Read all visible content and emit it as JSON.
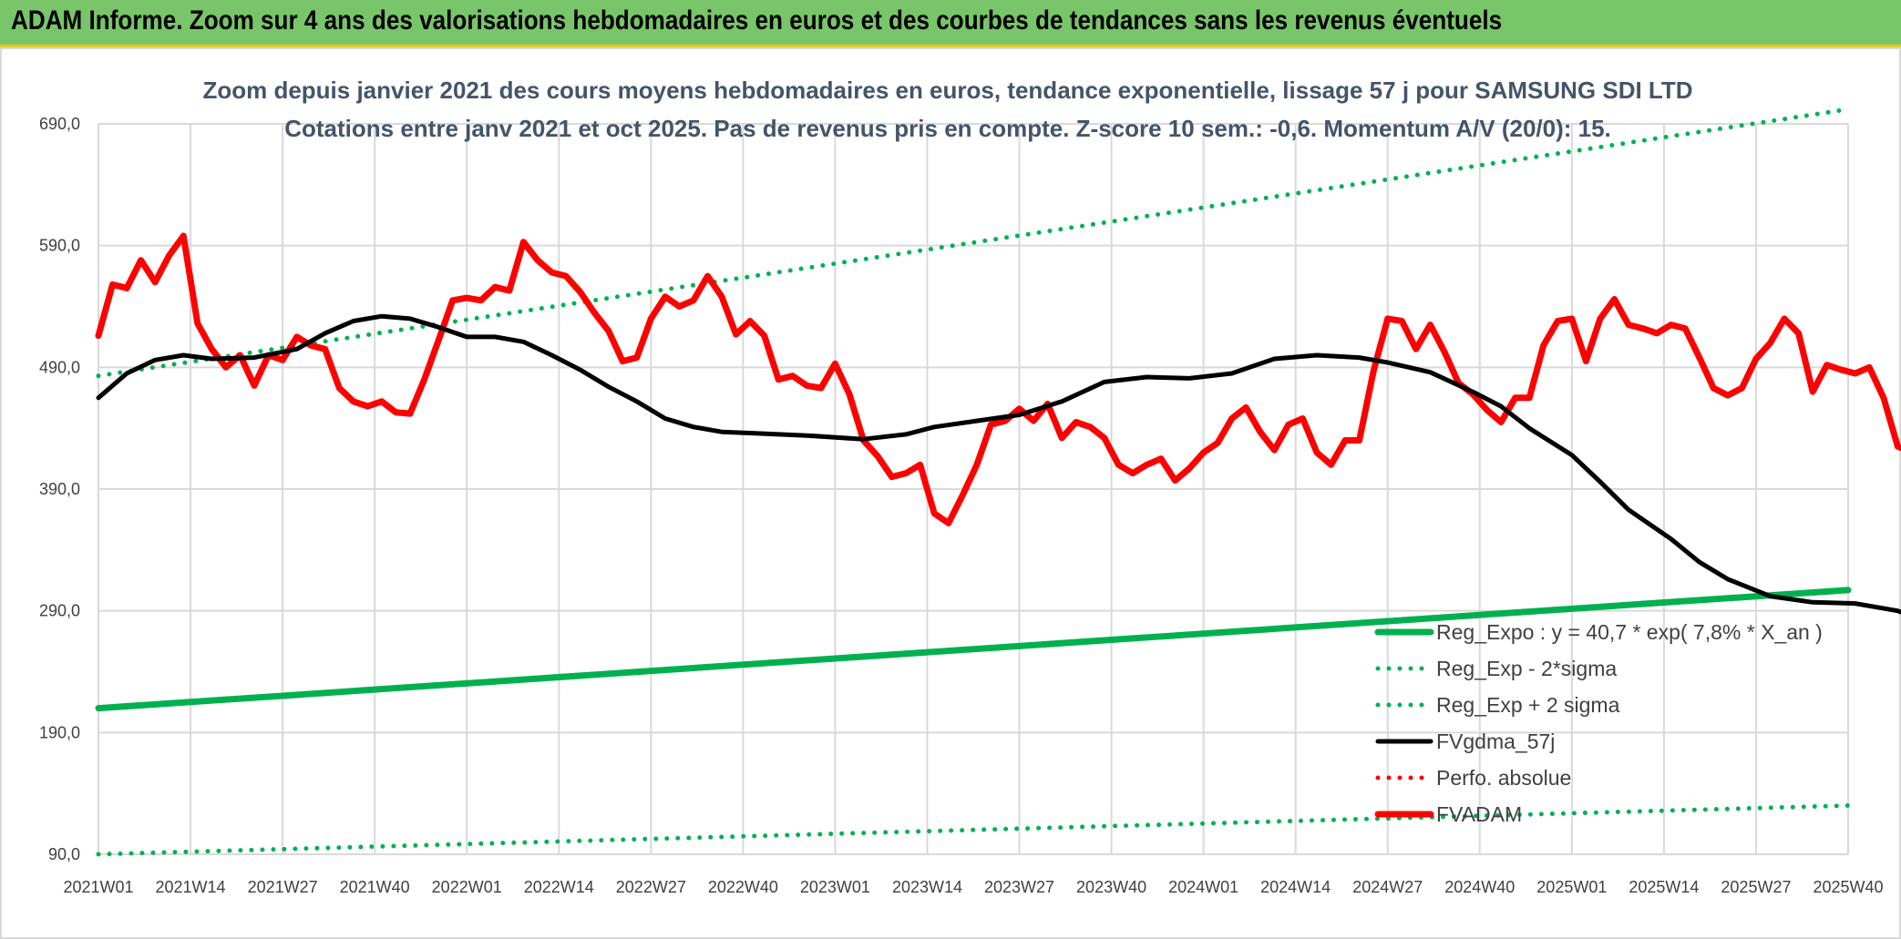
{
  "header": {
    "title": "ADAM Informe. Zoom sur 4 ans des valorisations hebdomadaires en euros et des courbes de tendances sans les revenus éventuels"
  },
  "colors": {
    "banner": "#79c56a",
    "trend": "#00b050",
    "smooth": "#000000",
    "price": "#ff0000",
    "grid": "#d9d9d9"
  },
  "chart_data": {
    "type": "line",
    "title": "Zoom depuis janvier 2021 des cours moyens hebdomadaires en euros, tendance exponentielle, lissage 57 j pour SAMSUNG SDI LTD",
    "subtitle": "Cotations entre janv 2021 et oct 2025. Pas de revenus pris en compte. Z-score 10 sem.: -0,6. Momentum A/V (20/0): 15.",
    "xlabel": "",
    "ylabel": "",
    "ylim": [
      90,
      690
    ],
    "grid": true,
    "legend_position": "right",
    "y_ticks": [
      "90,0",
      "190,0",
      "290,0",
      "390,0",
      "490,0",
      "590,0",
      "690,0"
    ],
    "x_ticks": [
      "2021W01",
      "2021W14",
      "2021W27",
      "2021W40",
      "2022W01",
      "2022W14",
      "2022W27",
      "2022W40",
      "2023W01",
      "2023W14",
      "2023W27",
      "2023W40",
      "2024W01",
      "2024W14",
      "2024W27",
      "2024W40",
      "2025W01",
      "2025W14",
      "2025W27",
      "2025W40"
    ],
    "legend": [
      "Reg_Expo : y = 40,7 * exp( 7,8% *  X_an )",
      "Reg_Exp - 2*sigma",
      "Reg_Exp + 2 sigma",
      "FVgdma_57j",
      "Perfo. absolue",
      "FVADAM"
    ],
    "series": [
      {
        "name": "Reg_Expo : y = 40,7 * exp( 7,8% *  X_an )",
        "style": "solid-thick",
        "color": "#00b050",
        "points": [
          [
            0,
            210
          ],
          [
            247,
            307
          ]
        ]
      },
      {
        "name": "Reg_Exp - 2*sigma",
        "style": "dotted",
        "color": "#00b050",
        "points": [
          [
            0,
            90
          ],
          [
            247,
            130
          ]
        ]
      },
      {
        "name": "Reg_Exp + 2 sigma",
        "style": "dotted",
        "color": "#00b050",
        "points": [
          [
            0,
            483
          ],
          [
            247,
            702
          ]
        ]
      },
      {
        "name": "FVgdma_57j",
        "style": "solid",
        "color": "#000000",
        "points": [
          [
            0,
            465
          ],
          [
            4,
            485
          ],
          [
            8,
            496
          ],
          [
            12,
            500
          ],
          [
            16,
            497
          ],
          [
            22,
            498
          ],
          [
            28,
            505
          ],
          [
            32,
            518
          ],
          [
            36,
            528
          ],
          [
            40,
            532
          ],
          [
            44,
            530
          ],
          [
            48,
            523
          ],
          [
            52,
            515
          ],
          [
            56,
            515
          ],
          [
            60,
            511
          ],
          [
            64,
            500
          ],
          [
            68,
            488
          ],
          [
            72,
            474
          ],
          [
            76,
            462
          ],
          [
            80,
            448
          ],
          [
            84,
            441
          ],
          [
            88,
            437
          ],
          [
            92,
            436
          ],
          [
            100,
            434
          ],
          [
            108,
            431
          ],
          [
            114,
            435
          ],
          [
            118,
            441
          ],
          [
            124,
            446
          ],
          [
            130,
            451
          ],
          [
            136,
            462
          ],
          [
            142,
            478
          ],
          [
            148,
            482
          ],
          [
            154,
            481
          ],
          [
            160,
            485
          ],
          [
            166,
            497
          ],
          [
            172,
            500
          ],
          [
            178,
            498
          ],
          [
            182,
            494
          ],
          [
            188,
            486
          ],
          [
            194,
            470
          ],
          [
            198,
            458
          ],
          [
            202,
            440
          ],
          [
            208,
            418
          ],
          [
            212,
            396
          ],
          [
            216,
            373
          ],
          [
            222,
            349
          ],
          [
            226,
            330
          ],
          [
            230,
            316
          ],
          [
            236,
            302
          ],
          [
            242,
            297
          ],
          [
            248,
            296
          ],
          [
            254,
            290
          ],
          [
            258,
            281
          ],
          [
            262,
            272
          ],
          [
            266,
            262
          ],
          [
            270,
            252
          ],
          [
            276,
            240
          ],
          [
            282,
            230
          ],
          [
            286,
            218
          ],
          [
            290,
            203
          ],
          [
            294,
            192
          ],
          [
            300,
            175
          ],
          [
            306,
            160
          ],
          [
            310,
            147
          ],
          [
            316,
            137
          ],
          [
            320,
            132
          ],
          [
            326,
            128
          ],
          [
            332,
            130
          ],
          [
            336,
            132
          ],
          [
            340,
            133
          ],
          [
            346,
            132
          ],
          [
            350,
            131
          ]
        ]
      },
      {
        "name": "Perfo. absolue",
        "style": "dotted",
        "color": "#ff0000",
        "points": []
      },
      {
        "name": "FVADAM",
        "style": "solid-thick",
        "color": "#ff0000",
        "points": [
          [
            0,
            516
          ],
          [
            2,
            558
          ],
          [
            4,
            555
          ],
          [
            6,
            578
          ],
          [
            8,
            560
          ],
          [
            10,
            582
          ],
          [
            12,
            598
          ],
          [
            14,
            526
          ],
          [
            16,
            505
          ],
          [
            18,
            490
          ],
          [
            20,
            500
          ],
          [
            22,
            475
          ],
          [
            24,
            500
          ],
          [
            26,
            496
          ],
          [
            28,
            515
          ],
          [
            30,
            508
          ],
          [
            32,
            505
          ],
          [
            34,
            473
          ],
          [
            36,
            462
          ],
          [
            38,
            458
          ],
          [
            40,
            462
          ],
          [
            42,
            453
          ],
          [
            44,
            452
          ],
          [
            46,
            480
          ],
          [
            48,
            512
          ],
          [
            50,
            545
          ],
          [
            52,
            547
          ],
          [
            54,
            545
          ],
          [
            56,
            556
          ],
          [
            58,
            553
          ],
          [
            60,
            593
          ],
          [
            62,
            578
          ],
          [
            64,
            568
          ],
          [
            66,
            565
          ],
          [
            68,
            552
          ],
          [
            70,
            535
          ],
          [
            72,
            520
          ],
          [
            74,
            495
          ],
          [
            76,
            498
          ],
          [
            78,
            530
          ],
          [
            80,
            548
          ],
          [
            82,
            540
          ],
          [
            84,
            545
          ],
          [
            86,
            565
          ],
          [
            88,
            548
          ],
          [
            90,
            517
          ],
          [
            92,
            528
          ],
          [
            94,
            516
          ],
          [
            96,
            480
          ],
          [
            98,
            483
          ],
          [
            100,
            475
          ],
          [
            102,
            473
          ],
          [
            104,
            493
          ],
          [
            106,
            468
          ],
          [
            108,
            430
          ],
          [
            110,
            417
          ],
          [
            112,
            400
          ],
          [
            114,
            403
          ],
          [
            116,
            410
          ],
          [
            118,
            370
          ],
          [
            120,
            362
          ],
          [
            122,
            385
          ],
          [
            124,
            410
          ],
          [
            126,
            443
          ],
          [
            128,
            446
          ],
          [
            130,
            456
          ],
          [
            132,
            446
          ],
          [
            134,
            460
          ],
          [
            136,
            432
          ],
          [
            138,
            445
          ],
          [
            140,
            441
          ],
          [
            142,
            432
          ],
          [
            144,
            410
          ],
          [
            146,
            403
          ],
          [
            148,
            410
          ],
          [
            150,
            415
          ],
          [
            152,
            397
          ],
          [
            154,
            407
          ],
          [
            156,
            420
          ],
          [
            158,
            428
          ],
          [
            160,
            448
          ],
          [
            162,
            457
          ],
          [
            164,
            437
          ],
          [
            166,
            422
          ],
          [
            168,
            443
          ],
          [
            170,
            448
          ],
          [
            172,
            420
          ],
          [
            174,
            410
          ],
          [
            176,
            430
          ],
          [
            178,
            430
          ],
          [
            180,
            487
          ],
          [
            182,
            530
          ],
          [
            184,
            528
          ],
          [
            186,
            505
          ],
          [
            188,
            525
          ],
          [
            190,
            503
          ],
          [
            192,
            477
          ],
          [
            194,
            468
          ],
          [
            196,
            455
          ],
          [
            198,
            445
          ],
          [
            200,
            465
          ],
          [
            202,
            465
          ],
          [
            204,
            508
          ],
          [
            206,
            528
          ],
          [
            208,
            530
          ],
          [
            210,
            495
          ],
          [
            212,
            530
          ],
          [
            214,
            546
          ],
          [
            216,
            525
          ],
          [
            218,
            522
          ],
          [
            220,
            518
          ],
          [
            222,
            525
          ],
          [
            224,
            522
          ],
          [
            226,
            498
          ],
          [
            228,
            473
          ],
          [
            230,
            467
          ],
          [
            232,
            473
          ],
          [
            234,
            497
          ],
          [
            236,
            510
          ],
          [
            238,
            530
          ],
          [
            240,
            518
          ],
          [
            242,
            470
          ],
          [
            244,
            492
          ],
          [
            246,
            488
          ],
          [
            248,
            485
          ],
          [
            250,
            490
          ],
          [
            252,
            465
          ],
          [
            254,
            425
          ],
          [
            256,
            420
          ],
          [
            258,
            411
          ],
          [
            260,
            420
          ],
          [
            262,
            405
          ],
          [
            264,
            385
          ],
          [
            266,
            364
          ],
          [
            268,
            345
          ],
          [
            270,
            363
          ],
          [
            272,
            353
          ],
          [
            274,
            315
          ],
          [
            276,
            312
          ],
          [
            278,
            330
          ],
          [
            280,
            313
          ],
          [
            282,
            330
          ],
          [
            284,
            325
          ],
          [
            286,
            315
          ],
          [
            288,
            318
          ],
          [
            290,
            321
          ],
          [
            292,
            320
          ],
          [
            294,
            315
          ],
          [
            296,
            280
          ],
          [
            298,
            248
          ],
          [
            300,
            265
          ],
          [
            302,
            270
          ],
          [
            304,
            272
          ],
          [
            306,
            275
          ],
          [
            308,
            270
          ],
          [
            310,
            272
          ],
          [
            312,
            303
          ],
          [
            314,
            318
          ],
          [
            316,
            330
          ],
          [
            318,
            305
          ],
          [
            320,
            270
          ],
          [
            322,
            275
          ],
          [
            324,
            290
          ],
          [
            326,
            297
          ],
          [
            328,
            292
          ],
          [
            330,
            271
          ],
          [
            332,
            263
          ],
          [
            334,
            262
          ],
          [
            336,
            268
          ],
          [
            338,
            262
          ],
          [
            340,
            248
          ],
          [
            342,
            235
          ],
          [
            344,
            228
          ],
          [
            346,
            230
          ],
          [
            348,
            218
          ],
          [
            350,
            212
          ],
          [
            352,
            195
          ],
          [
            354,
            190
          ],
          [
            356,
            180
          ],
          [
            358,
            170
          ],
          [
            360,
            170
          ],
          [
            362,
            165
          ],
          [
            364,
            167
          ],
          [
            366,
            155
          ],
          [
            368,
            158
          ],
          [
            370,
            150
          ],
          [
            372,
            145
          ],
          [
            374,
            146
          ],
          [
            376,
            158
          ],
          [
            378,
            143
          ],
          [
            380,
            135
          ],
          [
            382,
            120
          ],
          [
            384,
            117
          ],
          [
            386,
            112
          ],
          [
            388,
            113
          ],
          [
            390,
            110
          ],
          [
            392,
            107
          ],
          [
            394,
            112
          ],
          [
            396,
            113
          ],
          [
            398,
            117
          ],
          [
            400,
            115
          ],
          [
            402,
            123
          ],
          [
            404,
            130
          ],
          [
            406,
            136
          ],
          [
            408,
            145
          ],
          [
            410,
            135
          ],
          [
            412,
            125
          ],
          [
            414,
            127
          ],
          [
            416,
            130
          ],
          [
            418,
            129
          ]
        ]
      }
    ]
  }
}
